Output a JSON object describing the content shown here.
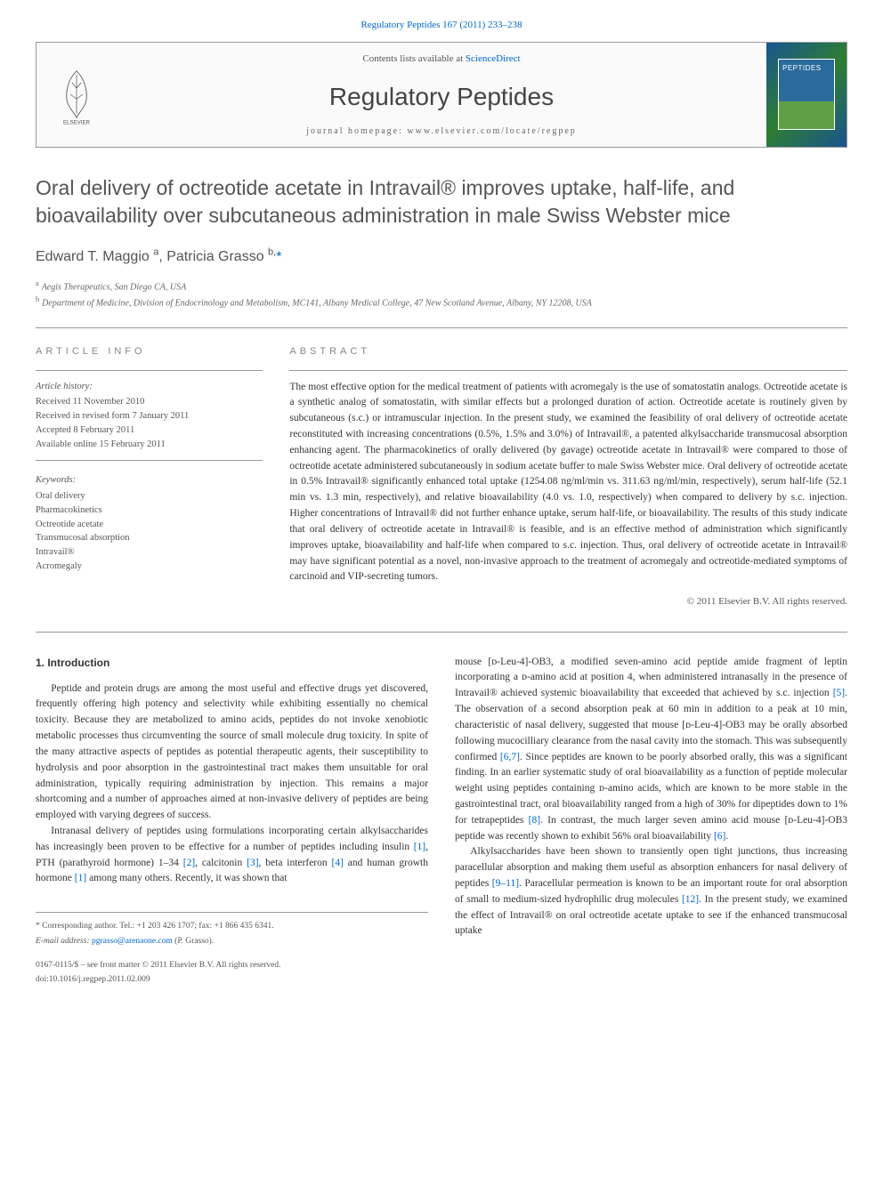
{
  "top_link": {
    "text": "Regulatory Peptides 167 (2011) 233–238",
    "href": "#"
  },
  "header": {
    "contents_prefix": "Contents lists available at ",
    "contents_link": "ScienceDirect",
    "journal": "Regulatory Peptides",
    "homepage_label": "journal homepage: ",
    "homepage": "www.elsevier.com/locate/regpep",
    "cover_label": "PEPTIDES"
  },
  "title": "Oral delivery of octreotide acetate in Intravail® improves uptake, half-life, and bioavailability over subcutaneous administration in male Swiss Webster mice",
  "authors_html": "Edward T. Maggio <sup>a</sup>, Patricia Grasso <sup>b,</sup>",
  "corr_marker": "*",
  "affiliations": [
    {
      "sup": "a",
      "text": "Aegis Therapeutics, San Diego CA, USA"
    },
    {
      "sup": "b",
      "text": "Department of Medicine, Division of Endocrinology and Metabolism, MC141, Albany Medical College, 47 New Scotland Avenue, Albany, NY 12208, USA"
    }
  ],
  "meta": {
    "info_heading": "ARTICLE INFO",
    "abstract_heading": "ABSTRACT",
    "history_label": "Article history:",
    "history": [
      "Received 11 November 2010",
      "Received in revised form 7 January 2011",
      "Accepted 8 February 2011",
      "Available online 15 February 2011"
    ],
    "keywords_label": "Keywords:",
    "keywords": [
      "Oral delivery",
      "Pharmacokinetics",
      "Octreotide acetate",
      "Transmucosal absorption",
      "Intravail®",
      "Acromegaly"
    ],
    "abstract": "The most effective option for the medical treatment of patients with acromegaly is the use of somatostatin analogs. Octreotide acetate is a synthetic analog of somatostatin, with similar effects but a prolonged duration of action. Octreotide acetate is routinely given by subcutaneous (s.c.) or intramuscular injection. In the present study, we examined the feasibility of oral delivery of octreotide acetate reconstituted with increasing concentrations (0.5%, 1.5% and 3.0%) of Intravail®, a patented alkylsaccharide transmucosal absorption enhancing agent. The pharmacokinetics of orally delivered (by gavage) octreotide acetate in Intravail® were compared to those of octreotide acetate administered subcutaneously in sodium acetate buffer to male Swiss Webster mice. Oral delivery of octreotide acetate in 0.5% Intravail® significantly enhanced total uptake (1254.08 ng/ml/min vs. 311.63 ng/ml/min, respectively), serum half-life (52.1 min vs. 1.3 min, respectively), and relative bioavailability (4.0 vs. 1.0, respectively) when compared to delivery by s.c. injection. Higher concentrations of Intravail® did not further enhance uptake, serum half-life, or bioavailability. The results of this study indicate that oral delivery of octreotide acetate in Intravail® is feasible, and is an effective method of administration which significantly improves uptake, bioavailability and half-life when compared to s.c. injection. Thus, oral delivery of octreotide acetate in Intravail® may have significant potential as a novel, non-invasive approach to the treatment of acromegaly and octreotide-mediated symptoms of carcinoid and VIP-secreting tumors.",
    "copyright": "© 2011 Elsevier B.V. All rights reserved."
  },
  "body": {
    "intro_heading": "1. Introduction",
    "col1": [
      "Peptide and protein drugs are among the most useful and effective drugs yet discovered, frequently offering high potency and selectivity while exhibiting essentially no chemical toxicity. Because they are metabolized to amino acids, peptides do not invoke xenobiotic metabolic processes thus circumventing the source of small molecule drug toxicity. In spite of the many attractive aspects of peptides as potential therapeutic agents, their susceptibility to hydrolysis and poor absorption in the gastrointestinal tract makes them unsuitable for oral administration, typically requiring administration by injection. This remains a major shortcoming and a number of approaches aimed at non-invasive delivery of peptides are being employed with varying degrees of success.",
      "Intranasal delivery of peptides using formulations incorporating certain alkylsaccharides has increasingly been proven to be effective for a number of peptides including insulin [1], PTH (parathyroid hormone) 1–34 [2], calcitonin [3], beta interferon [4] and human growth hormone [1] among many others. Recently, it was shown that"
    ],
    "col2": [
      "mouse [ᴅ-Leu-4]-OB3, a modified seven-amino acid peptide amide fragment of leptin incorporating a ᴅ-amino acid at position 4, when administered intranasally in the presence of Intravail® achieved systemic bioavailability that exceeded that achieved by s.c. injection [5]. The observation of a second absorption peak at 60 min in addition to a peak at 10 min, characteristic of nasal delivery, suggested that mouse [ᴅ-Leu-4]-OB3 may be orally absorbed following mucocilliary clearance from the nasal cavity into the stomach. This was subsequently confirmed [6,7]. Since peptides are known to be poorly absorbed orally, this was a significant finding. In an earlier systematic study of oral bioavailability as a function of peptide molecular weight using peptides containing ᴅ-amino acids, which are known to be more stable in the gastrointestinal tract, oral bioavailability ranged from a high of 30% for dipeptides down to 1% for tetrapeptides [8]. In contrast, the much larger seven amino acid mouse [ᴅ-Leu-4]-OB3 peptide was recently shown to exhibit 56% oral bioavailability [6].",
      "Alkylsaccharides have been shown to transiently open tight junctions, thus increasing paracellular absorption and making them useful as absorption enhancers for nasal delivery of peptides [9–11]. Paracellular permeation is known to be an important route for oral absorption of small to medium-sized hydrophilic drug molecules [12]. In the present study, we examined the effect of Intravail® on oral octreotide acetate uptake to see if the enhanced transmucosal uptake"
    ],
    "refs_in_text": [
      "[1]",
      "[2]",
      "[3]",
      "[4]",
      "[5]",
      "[6,7]",
      "[8]",
      "[6]",
      "[9–11]",
      "[12]"
    ]
  },
  "footer": {
    "corr_label": "* Corresponding author. Tel.: +1 203 426 1707; fax: +1 866 435 6341.",
    "email_label": "E-mail address: ",
    "email": "pgrasso@arenaone.com",
    "email_person": " (P. Grasso).",
    "issn_line": "0167-0115/$ – see front matter © 2011 Elsevier B.V. All rights reserved.",
    "doi_line": "doi:10.1016/j.regpep.2011.02.009"
  },
  "colors": {
    "link": "#0066cc",
    "rule": "#999999",
    "heading_gray": "#555555"
  }
}
